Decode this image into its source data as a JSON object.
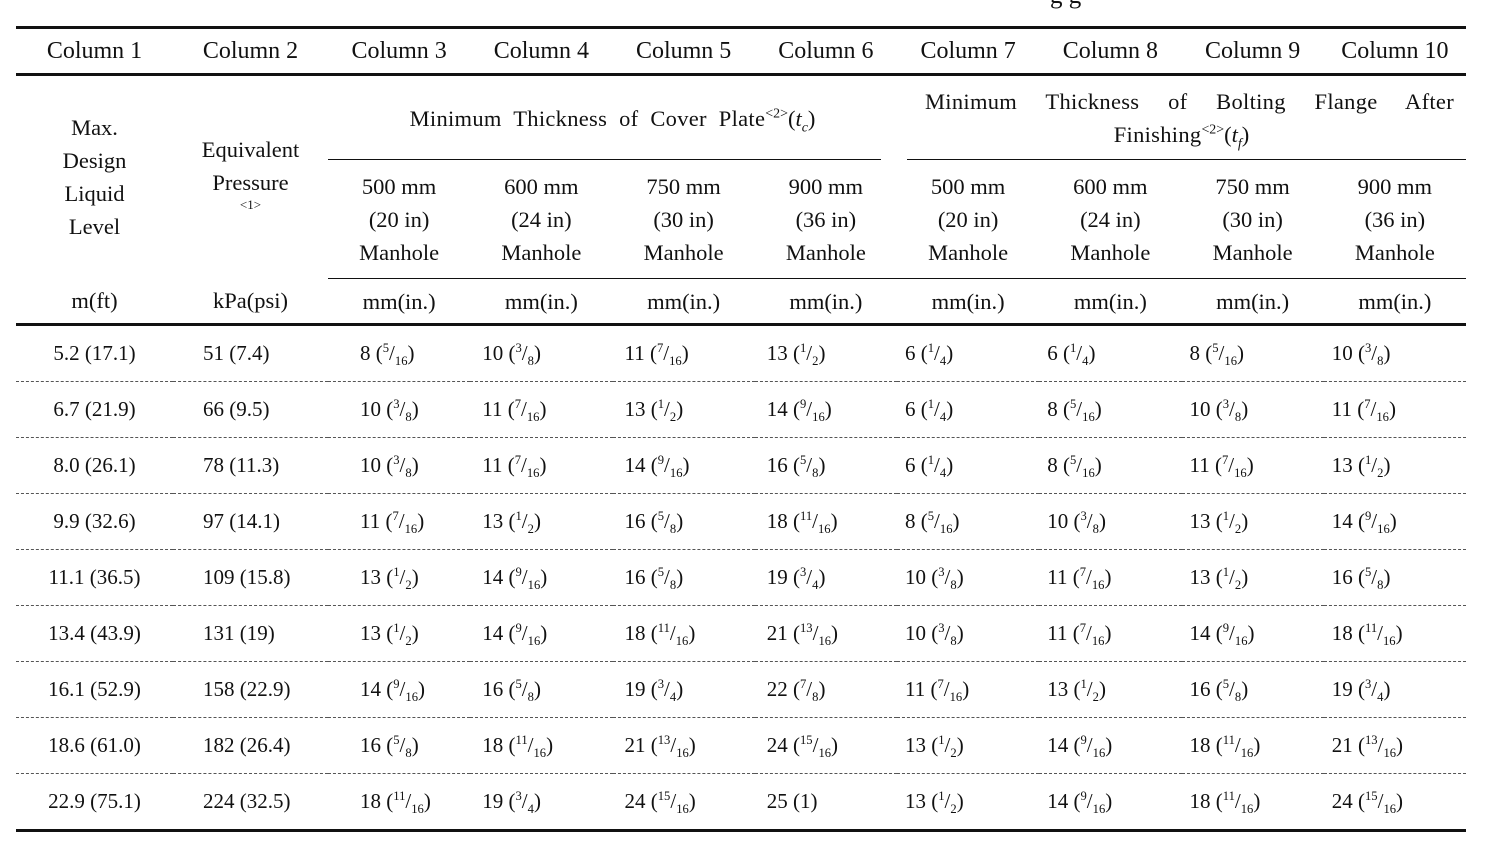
{
  "crop_text": "g  g",
  "column_names": [
    "Column 1",
    "Column 2",
    "Column 3",
    "Column 4",
    "Column 5",
    "Column 6",
    "Column 7",
    "Column 8",
    "Column 9",
    "Column 10"
  ],
  "header": {
    "col1_lines": [
      "Max.",
      "Design",
      "Liquid",
      "Level"
    ],
    "col2_lines": [
      "Equivalent",
      "Pressure"
    ],
    "col2_note": "<1>",
    "group1_title": "Minimum Thickness of Cover Plate",
    "group1_note": "<2>",
    "group1_symbol_open": "(",
    "group1_symbol": "t",
    "group1_symbol_sub": "c",
    "group1_symbol_close": ")",
    "group2_title_line1": "Minimum Thickness of Bolting Flange After",
    "group2_title_line2": "Finishing",
    "group2_note": "<2>",
    "group2_symbol_open": "(",
    "group2_symbol": "t",
    "group2_symbol_sub": "f",
    "group2_symbol_close": ")",
    "sizes": [
      [
        "500 mm",
        "(20 in)",
        "Manhole"
      ],
      [
        "600 mm",
        "(24 in)",
        "Manhole"
      ],
      [
        "750 mm",
        "(30 in)",
        "Manhole"
      ],
      [
        "900 mm",
        "(36 in)",
        "Manhole"
      ],
      [
        "500 mm",
        "(20 in)",
        "Manhole"
      ],
      [
        "600 mm",
        "(24 in)",
        "Manhole"
      ],
      [
        "750 mm",
        "(30 in)",
        "Manhole"
      ],
      [
        "900 mm",
        "(36 in)",
        "Manhole"
      ]
    ]
  },
  "units": [
    "m(ft)",
    "kPa(psi)",
    "mm(in.)",
    "mm(in.)",
    "mm(in.)",
    "mm(in.)",
    "mm(in.)",
    "mm(in.)",
    "mm(in.)",
    "mm(in.)"
  ],
  "rows": [
    {
      "level": "5.2  (17.1)",
      "pressure": "51  (7.4)",
      "cells": [
        [
          "8",
          "5",
          "16"
        ],
        [
          "10",
          "3",
          "8"
        ],
        [
          "11",
          "7",
          "16"
        ],
        [
          "13",
          "1",
          "2"
        ],
        [
          "6",
          "1",
          "4"
        ],
        [
          "6",
          "1",
          "4"
        ],
        [
          "8",
          "5",
          "16"
        ],
        [
          "10",
          "3",
          "8"
        ]
      ]
    },
    {
      "level": "6.7  (21.9)",
      "pressure": "66  (9.5)",
      "cells": [
        [
          "10",
          "3",
          "8"
        ],
        [
          "11",
          "7",
          "16"
        ],
        [
          "13",
          "1",
          "2"
        ],
        [
          "14",
          "9",
          "16"
        ],
        [
          "6",
          "1",
          "4"
        ],
        [
          "8",
          "5",
          "16"
        ],
        [
          "10",
          "3",
          "8"
        ],
        [
          "11",
          "7",
          "16"
        ]
      ]
    },
    {
      "level": "8.0  (26.1)",
      "pressure": "78  (11.3)",
      "cells": [
        [
          "10",
          "3",
          "8"
        ],
        [
          "11",
          "7",
          "16"
        ],
        [
          "14",
          "9",
          "16"
        ],
        [
          "16",
          "5",
          "8"
        ],
        [
          "6",
          "1",
          "4"
        ],
        [
          "8",
          "5",
          "16"
        ],
        [
          "11",
          "7",
          "16"
        ],
        [
          "13",
          "1",
          "2"
        ]
      ]
    },
    {
      "level": "9.9  (32.6)",
      "pressure": "97  (14.1)",
      "cells": [
        [
          "11",
          "7",
          "16"
        ],
        [
          "13",
          "1",
          "2"
        ],
        [
          "16",
          "5",
          "8"
        ],
        [
          "18",
          "11",
          "16"
        ],
        [
          "8",
          "5",
          "16"
        ],
        [
          "10",
          "3",
          "8"
        ],
        [
          "13",
          "1",
          "2"
        ],
        [
          "14",
          "9",
          "16"
        ]
      ]
    },
    {
      "level": "11.1  (36.5)",
      "pressure": "109  (15.8)",
      "cells": [
        [
          "13",
          "1",
          "2"
        ],
        [
          "14",
          "9",
          "16"
        ],
        [
          "16",
          "5",
          "8"
        ],
        [
          "19",
          "3",
          "4"
        ],
        [
          "10",
          "3",
          "8"
        ],
        [
          "11",
          "7",
          "16"
        ],
        [
          "13",
          "1",
          "2"
        ],
        [
          "16",
          "5",
          "8"
        ]
      ]
    },
    {
      "level": "13.4  (43.9)",
      "pressure": "131  (19)",
      "cells": [
        [
          "13",
          "1",
          "2"
        ],
        [
          "14",
          "9",
          "16"
        ],
        [
          "18",
          "11",
          "16"
        ],
        [
          "21",
          "13",
          "16"
        ],
        [
          "10",
          "3",
          "8"
        ],
        [
          "11",
          "7",
          "16"
        ],
        [
          "14",
          "9",
          "16"
        ],
        [
          "18",
          "11",
          "16"
        ]
      ]
    },
    {
      "level": "16.1  (52.9)",
      "pressure": "158  (22.9)",
      "cells": [
        [
          "14",
          "9",
          "16"
        ],
        [
          "16",
          "5",
          "8"
        ],
        [
          "19",
          "3",
          "4"
        ],
        [
          "22",
          "7",
          "8"
        ],
        [
          "11",
          "7",
          "16"
        ],
        [
          "13",
          "1",
          "2"
        ],
        [
          "16",
          "5",
          "8"
        ],
        [
          "19",
          "3",
          "4"
        ]
      ]
    },
    {
      "level": "18.6  (61.0)",
      "pressure": "182  (26.4)",
      "cells": [
        [
          "16",
          "5",
          "8"
        ],
        [
          "18",
          "11",
          "16"
        ],
        [
          "21",
          "13",
          "16"
        ],
        [
          "24",
          "15",
          "16"
        ],
        [
          "13",
          "1",
          "2"
        ],
        [
          "14",
          "9",
          "16"
        ],
        [
          "18",
          "11",
          "16"
        ],
        [
          "21",
          "13",
          "16"
        ]
      ]
    },
    {
      "level": "22.9  (75.1)",
      "pressure": "224  (32.5)",
      "cells": [
        [
          "18",
          "11",
          "16"
        ],
        [
          "19",
          "3",
          "4"
        ],
        [
          "24",
          "15",
          "16"
        ],
        [
          "25",
          "",
          ""
        ],
        [
          "13",
          "1",
          "2"
        ],
        [
          "14",
          "9",
          "16"
        ],
        [
          "18",
          "11",
          "16"
        ],
        [
          "24",
          "15",
          "16"
        ]
      ],
      "plain_cells": {
        "3": "25  (1)"
      }
    }
  ]
}
